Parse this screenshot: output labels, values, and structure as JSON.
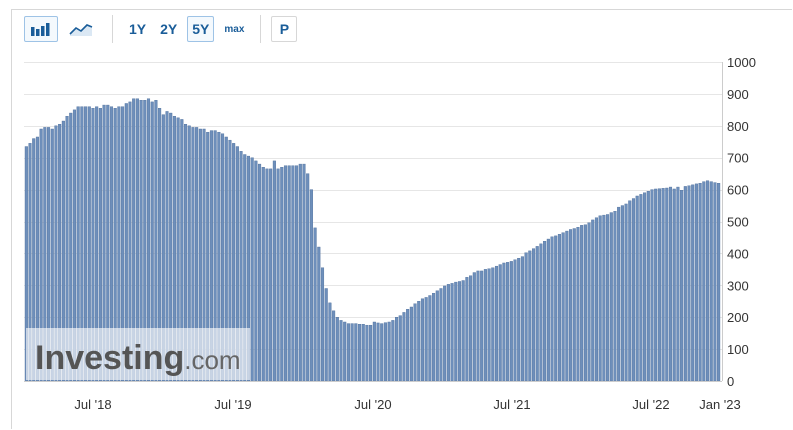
{
  "toolbar": {
    "bar_chart_icon": "bar-chart-icon",
    "line_chart_icon": "line-chart-icon",
    "ranges": [
      "1Y",
      "2Y",
      "5Y",
      "max"
    ],
    "active_range": "5Y",
    "p_label": "P"
  },
  "watermark": {
    "text": "Investing.com",
    "dot_color": "#f2a100"
  },
  "colors": {
    "bar_fill": "#6e8fbb",
    "bar_stroke": "#4e6f9c",
    "grid": "#e6e6e6"
  },
  "chart_data": {
    "type": "bar",
    "title": "",
    "xlabel": "",
    "ylabel": "",
    "ylim": [
      0,
      1000
    ],
    "y_ticks": [
      "0",
      "100",
      "200",
      "300",
      "400",
      "500",
      "600",
      "700",
      "800",
      "900",
      "1000"
    ],
    "x_ticks": [
      "Jul '18",
      "Jul '19",
      "Jul '20",
      "Jul '21",
      "Jul '22",
      "Jan '23"
    ],
    "grid": true,
    "y_axis_position": "right",
    "series": [
      {
        "values": [
          735,
          745,
          760,
          765,
          790,
          795,
          795,
          790,
          800,
          805,
          815,
          830,
          840,
          850,
          860,
          860,
          860,
          860,
          855,
          860,
          855,
          865,
          865,
          860,
          855,
          860,
          860,
          870,
          875,
          885,
          885,
          880,
          880,
          885,
          875,
          880,
          855,
          835,
          845,
          840,
          830,
          825,
          820,
          805,
          800,
          795,
          795,
          790,
          790,
          780,
          785,
          785,
          780,
          775,
          765,
          755,
          745,
          735,
          720,
          710,
          705,
          700,
          690,
          680,
          670,
          665,
          665,
          690,
          665,
          670,
          675,
          675,
          675,
          675,
          680,
          680,
          650,
          600,
          480,
          420,
          355,
          290,
          245,
          220,
          200,
          190,
          185,
          180,
          180,
          180,
          178,
          178,
          175,
          175,
          185,
          182,
          180,
          183,
          185,
          190,
          200,
          205,
          215,
          225,
          232,
          242,
          250,
          258,
          262,
          268,
          275,
          283,
          290,
          298,
          303,
          306,
          310,
          312,
          315,
          325,
          330,
          340,
          345,
          345,
          350,
          352,
          355,
          360,
          365,
          370,
          372,
          375,
          380,
          385,
          390,
          402,
          408,
          415,
          422,
          430,
          438,
          445,
          452,
          455,
          460,
          465,
          470,
          475,
          478,
          482,
          488,
          490,
          496,
          505,
          512,
          518,
          520,
          522,
          528,
          532,
          545,
          550,
          555,
          565,
          572,
          580,
          585,
          590,
          595,
          600,
          602,
          603,
          604,
          605,
          608,
          602,
          608,
          598,
          610,
          612,
          615,
          618,
          620,
          625,
          628,
          625,
          622,
          620
        ]
      }
    ]
  }
}
